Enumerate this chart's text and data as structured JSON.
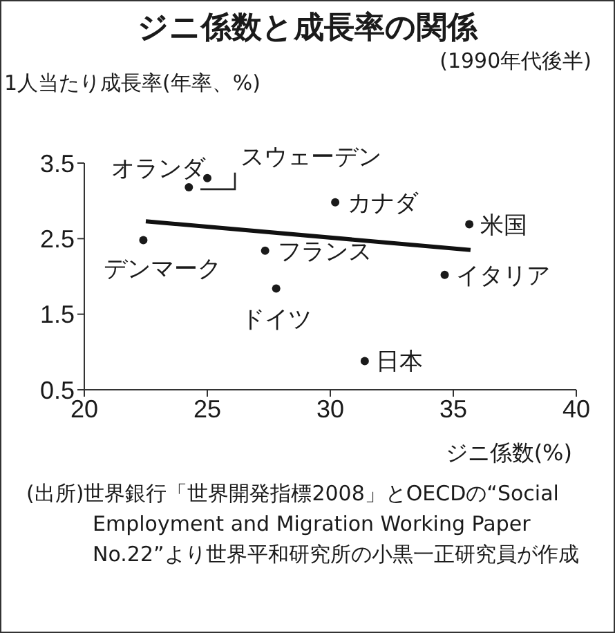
{
  "chart_data": {
    "type": "scatter",
    "title": "ジニ係数と成長率の関係",
    "subtitle": "(1990年代後半)",
    "ylabel": "1人当たり成長率(年率、%)",
    "xlabel": "ジニ係数(%)",
    "annotations": [
      "(出所)世界銀行「世界開発指標2008」とOECDの“Social Employment and Migration Working Paper No.22”より世界平和研究所の小黒一正研究員が作成"
    ],
    "xlim": [
      20,
      40
    ],
    "xticks": [
      20,
      25,
      30,
      35,
      40
    ],
    "ylim": [
      0.5,
      3.5
    ],
    "yticks": [
      0.5,
      1.5,
      2.5,
      3.5
    ],
    "grid": false,
    "marker": "circle",
    "series": [
      {
        "name": "オランダ",
        "color": "#1a1a1a",
        "x": [
          24.25
        ],
        "values": [
          3.18
        ]
      },
      {
        "name": "スウェーデン",
        "color": "#1a1a1a",
        "x": [
          25.0
        ],
        "values": [
          3.3
        ]
      },
      {
        "name": "カナダ",
        "color": "#1a1a1a",
        "x": [
          30.2
        ],
        "values": [
          2.98
        ]
      },
      {
        "name": "米国",
        "color": "#1a1a1a",
        "x": [
          35.65
        ],
        "values": [
          2.69
        ]
      },
      {
        "name": "デンマーク",
        "color": "#1a1a1a",
        "x": [
          22.4
        ],
        "values": [
          2.48
        ]
      },
      {
        "name": "フランス",
        "color": "#1a1a1a",
        "x": [
          27.35
        ],
        "values": [
          2.34
        ]
      },
      {
        "name": "イタリア",
        "color": "#1a1a1a",
        "x": [
          34.65
        ],
        "values": [
          2.02
        ]
      },
      {
        "name": "ドイツ",
        "color": "#1a1a1a",
        "x": [
          27.8
        ],
        "values": [
          1.84
        ]
      },
      {
        "name": "日本",
        "color": "#1a1a1a",
        "x": [
          31.4
        ],
        "values": [
          0.88
        ]
      },
      {
        "type": "line",
        "color": "#111111",
        "marker": "none",
        "x": [
          22.5,
          35.7
        ],
        "values": [
          2.73,
          2.35
        ]
      }
    ]
  }
}
